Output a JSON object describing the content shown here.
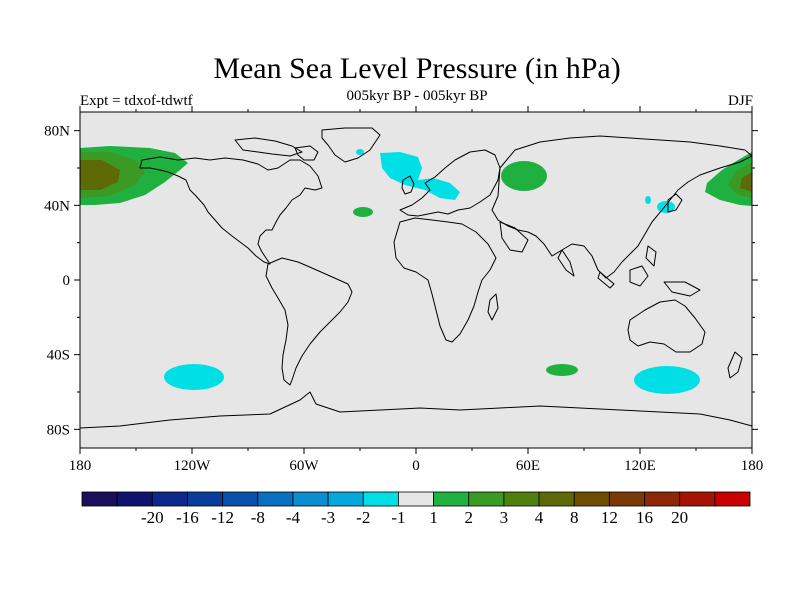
{
  "title": "Mean Sea Level Pressure (in hPa)",
  "subtitle": "005kyr BP - 005kyr BP",
  "experiment_label": "Expt = tdxof-tdwtf",
  "season_label": "DJF",
  "map": {
    "background_color": "#e6e6e6",
    "lat_ticks": [
      {
        "label": "80N"
      },
      {
        "label": "40N"
      },
      {
        "label": "0"
      },
      {
        "label": "40S"
      },
      {
        "label": "80S"
      }
    ],
    "lon_ticks": [
      {
        "label": "180"
      },
      {
        "label": "120W"
      },
      {
        "label": "60W"
      },
      {
        "label": "0"
      },
      {
        "label": "60E"
      },
      {
        "label": "120E"
      },
      {
        "label": "180"
      }
    ]
  },
  "colorbar": {
    "colors": [
      "#1a0f5c",
      "#10136e",
      "#0c2a8a",
      "#0a3c9c",
      "#0a50aa",
      "#0870bf",
      "#0b8dcf",
      "#06a8dc",
      "#00dfe6",
      "#e6e6e6",
      "#20b040",
      "#3a9a24",
      "#4f7f0e",
      "#5e6a08",
      "#6e4c00",
      "#7a3a08",
      "#8c2808",
      "#a41404",
      "#c80000"
    ],
    "labels": [
      "-20",
      "-16",
      "-12",
      "-8",
      "-4",
      "-3",
      "-2",
      "-1",
      "1",
      "2",
      "3",
      "4",
      "8",
      "12",
      "16",
      "20"
    ]
  }
}
